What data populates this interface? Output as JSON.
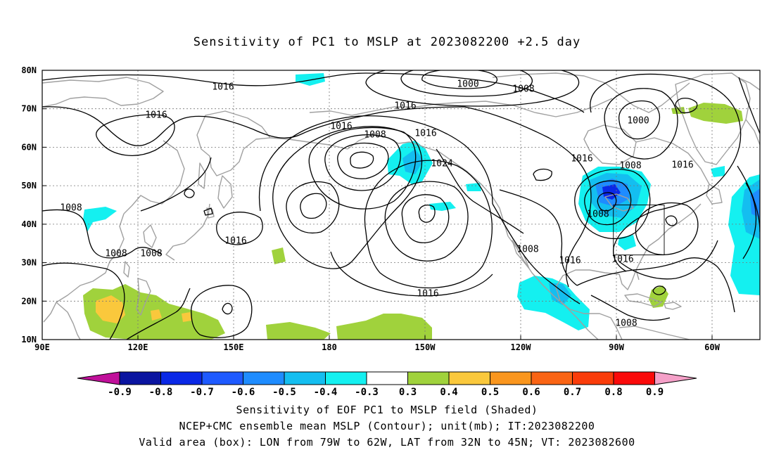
{
  "title": "Sensitivity of PC1 to MSLP at 2023082200 +2.5 day",
  "axes": {
    "lat_ticks": [
      "80N",
      "70N",
      "60N",
      "50N",
      "40N",
      "30N",
      "20N",
      "10N"
    ],
    "lon_ticks": [
      "90E",
      "120E",
      "150E",
      "180",
      "150W",
      "120W",
      "90W",
      "60W"
    ]
  },
  "contour_labels": [
    "1016",
    "1000",
    "1008",
    "1016",
    "1000",
    "1016",
    "1008",
    "1016",
    "1008",
    "1016",
    "1024",
    "1016",
    "1008",
    "1008",
    "1016",
    "1008",
    "1008",
    "1016",
    "1008",
    "1016",
    "1008",
    "1016",
    "1016"
  ],
  "colorbar": {
    "labels": [
      "-0.9",
      "-0.8",
      "-0.7",
      "-0.6",
      "-0.5",
      "-0.4",
      "-0.3",
      "0.3",
      "0.4",
      "0.5",
      "0.6",
      "0.7",
      "0.8",
      "0.9"
    ],
    "colors": [
      "#c0109a",
      "#0a14a0",
      "#0a28e6",
      "#1e5aff",
      "#1e8cff",
      "#14bef0",
      "#14f0f0",
      "#ffffff",
      "#a0d23c",
      "#fac83c",
      "#fa961e",
      "#fa6414",
      "#fa3c0a",
      "#fa0a0a",
      "#f5a0c8"
    ]
  },
  "shading_colors": {
    "cyan": "#14f0f0",
    "sky": "#14bef0",
    "blue": "#1e8cff",
    "deep_blue": "#0a28e6",
    "green": "#a0d23c",
    "yellow": "#fac83c"
  },
  "contour_color": "#000000",
  "coastline_color": "#a0a0a0",
  "valid_box": {
    "lon_min": -79,
    "lon_max": -62,
    "lat_min": 32,
    "lat_max": 45
  },
  "captions": {
    "line1": "Sensitivity of EOF PC1 to MSLP field (Shaded)",
    "line2": "NCEP+CMC ensemble mean MSLP (Contour); unit(mb); IT:2023082200",
    "line3": "Valid area (box): LON from 79W to 62W, LAT from 32N to 45N; VT: 2023082600"
  }
}
